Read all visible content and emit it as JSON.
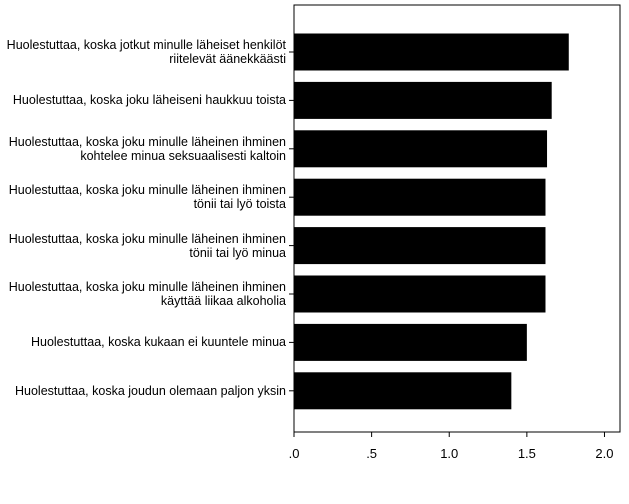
{
  "chart_data": {
    "type": "bar",
    "orientation": "horizontal",
    "categories": [
      "Huolestuttaa, koska jotkut minulle läheiset henkilöt riitelevät äänekkäästi",
      "Huolestuttaa, koska joku läheiseni haukkuu toista",
      "Huolestuttaa, koska joku minulle läheinen ihminen kohtelee minua seksuaalisesti kaltoin",
      "Huolestuttaa, koska joku minulle läheinen ihminen tönii tai lyö toista",
      "Huolestuttaa, koska joku minulle läheinen ihminen tönii tai lyö minua",
      "Huolestuttaa, koska joku minulle läheinen ihminen käyttää liikaa alkoholia",
      "Huolestuttaa, koska kukaan ei kuuntele minua",
      "Huolestuttaa, koska joudun olemaan paljon yksin"
    ],
    "values": [
      1.77,
      1.66,
      1.63,
      1.62,
      1.62,
      1.62,
      1.5,
      1.4
    ],
    "color": "#000000",
    "xlim": [
      0,
      2.1
    ],
    "xticks": [
      {
        "value": 0,
        "label": ".0"
      },
      {
        "value": 0.5,
        "label": ".5"
      },
      {
        "value": 1.0,
        "label": "1.0"
      },
      1.5,
      {
        "value": 2.0,
        "label": "2.0"
      }
    ]
  }
}
